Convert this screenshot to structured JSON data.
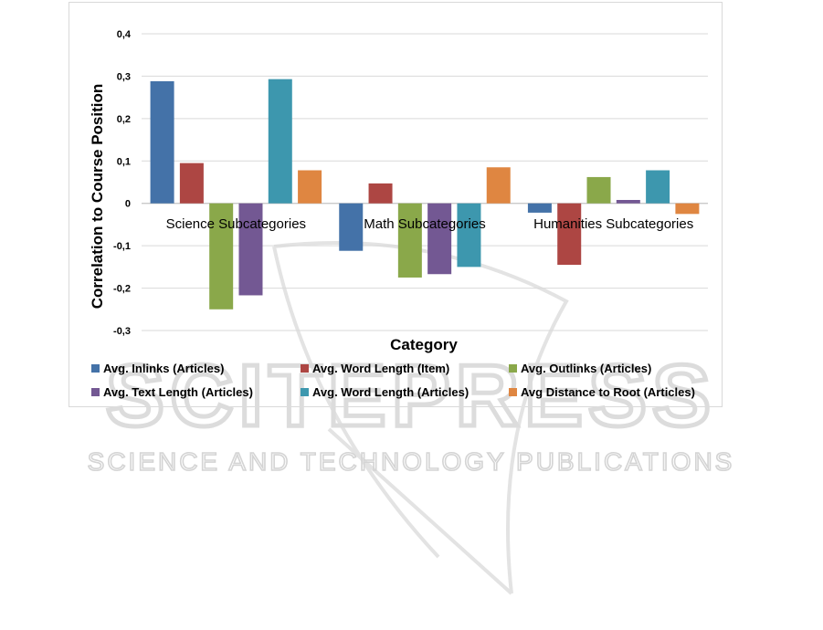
{
  "watermark": {
    "brand": "SCITEPRESS",
    "tagline": "SCIENCE AND TECHNOLOGY PUBLICATIONS",
    "color": "#d9d9d9"
  },
  "chart_data": {
    "type": "bar",
    "title": "",
    "xlabel": "Category",
    "ylabel": "Correlation to Course Position",
    "ylim": [
      -0.3,
      0.4
    ],
    "yticks": [
      0.4,
      0.3,
      0.2,
      0.1,
      0,
      -0.1,
      -0.2,
      -0.3
    ],
    "ytick_labels": [
      "0,4",
      "0,3",
      "0,2",
      "0,1",
      "0",
      "-0,1",
      "-0,2",
      "-0,3"
    ],
    "grid": true,
    "legend_position": "bottom",
    "categories": [
      "Science Subcategories",
      "Math Subcategories",
      "Humanities Subcategories"
    ],
    "series": [
      {
        "name": "Avg. Inlinks (Articles)",
        "color": "#4472a8",
        "values": [
          0.288,
          -0.112,
          -0.022
        ]
      },
      {
        "name": "Avg. Word Length (Item)",
        "color": "#ad4643",
        "values": [
          0.095,
          0.047,
          -0.145
        ]
      },
      {
        "name": "Avg. Outlinks (Articles)",
        "color": "#8aa84a",
        "values": [
          -0.25,
          -0.175,
          0.062
        ]
      },
      {
        "name": "Avg. Text Length (Articles)",
        "color": "#735893",
        "values": [
          -0.217,
          -0.167,
          0.008
        ]
      },
      {
        "name": "Avg. Word Length (Articles)",
        "color": "#3d97ae",
        "values": [
          0.293,
          -0.15,
          0.078
        ]
      },
      {
        "name": "Avg Distance to Root (Articles)",
        "color": "#df8641",
        "values": [
          0.078,
          0.085,
          -0.025
        ]
      }
    ]
  }
}
